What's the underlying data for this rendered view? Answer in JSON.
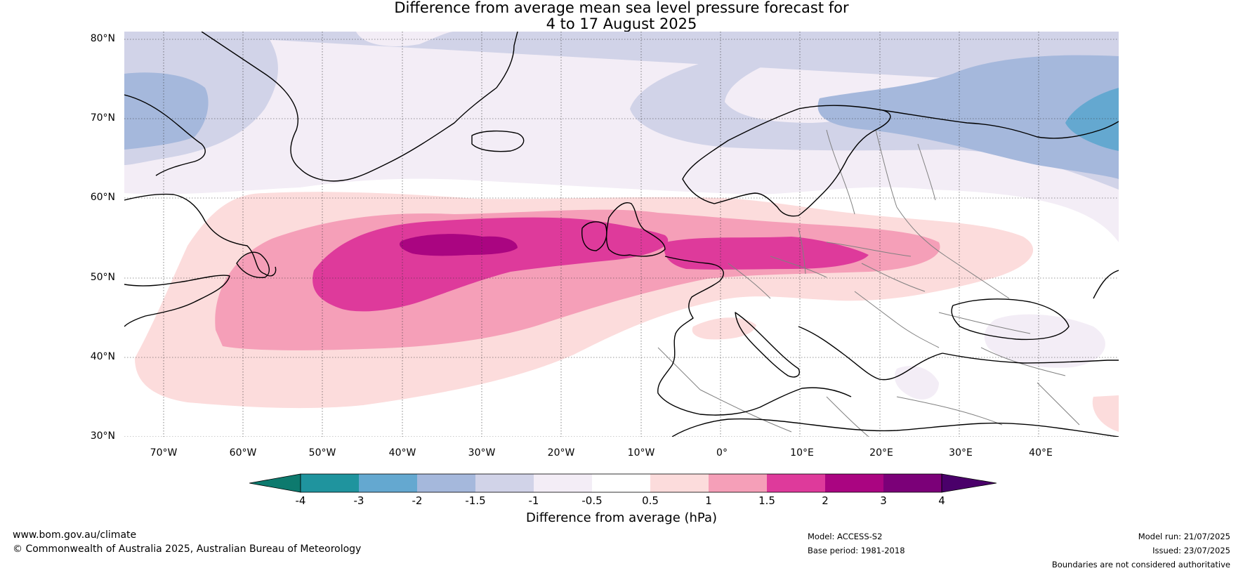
{
  "title_line1": "Difference from average mean sea level pressure forecast for",
  "title_line2": "4 to 17 August 2025",
  "lat_labels": [
    "80°N",
    "70°N",
    "60°N",
    "50°N",
    "40°N",
    "30°N"
  ],
  "lon_labels": [
    "70°W",
    "60°W",
    "50°W",
    "40°W",
    "30°W",
    "20°W",
    "10°W",
    "0°",
    "10°E",
    "20°E",
    "30°E",
    "40°E"
  ],
  "colorbar": {
    "title": "Difference from average (hPa)",
    "tick_labels": [
      "-4",
      "-3",
      "-2",
      "-1.5",
      "-1",
      "-0.5",
      "0.5",
      "1",
      "1.5",
      "2",
      "3",
      "4"
    ],
    "colors": [
      "#0d7a6e",
      "#1f949e",
      "#64a8d0",
      "#a5b8dc",
      "#d1d3e8",
      "#f3edf6",
      "#ffffff",
      "#fcdcdc",
      "#f59fb8",
      "#de3a9b",
      "#aa0581",
      "#7b0078",
      "#4a006a"
    ]
  },
  "map": {
    "bounds": {
      "lon_min": -75,
      "lon_max": 50,
      "lat_min": 30,
      "lat_max": 81
    },
    "coastline_color": "#000000",
    "border_color": "#808080"
  },
  "footer": {
    "website": "www.bom.gov.au/climate",
    "copyright": "© Commonwealth of Australia 2025, Australian Bureau of Meteorology",
    "model": "Model: ACCESS-S2",
    "base_period": "Base period: 1981-2018",
    "model_run": "Model run: 21/07/2025",
    "issued": "Issued: 23/07/2025",
    "disclaimer": "Boundaries are not considered authoritative"
  }
}
